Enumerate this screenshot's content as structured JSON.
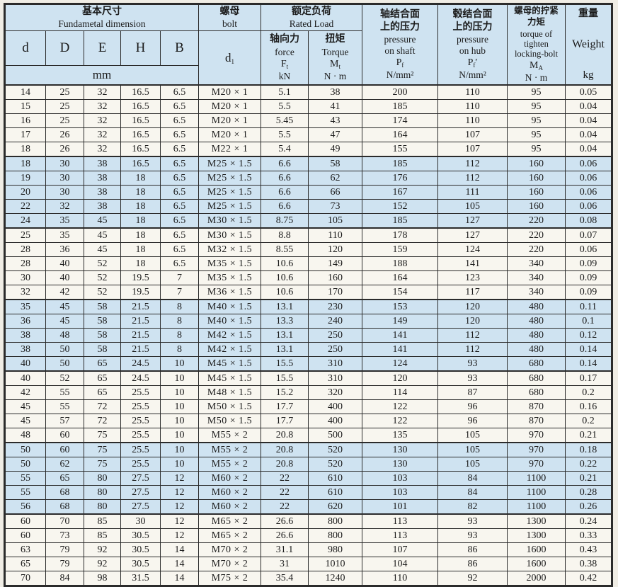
{
  "page": {
    "background": "#f0ede5",
    "shaded_row_color": "#cfe3f1",
    "plain_row_color": "#f8f6ef",
    "border_color": "#2b2b2b"
  },
  "header": {
    "basic": {
      "zh": "基本尺寸",
      "en": "Fundametal dimension",
      "cols": [
        "d",
        "D",
        "E",
        "H",
        "B"
      ],
      "unit": "mm"
    },
    "bolt": {
      "zh": "螺母",
      "en": "bolt",
      "sym": "d",
      "sub": "1"
    },
    "rated": {
      "zh": "额定负荷",
      "en": "Rated Load"
    },
    "force": {
      "zh": "轴向力",
      "en": "force",
      "sym": "F",
      "sub": "t",
      "unit": "kN"
    },
    "torque": {
      "zh": "扭矩",
      "en": "Torque",
      "sym": "M",
      "sub": "t",
      "unit": "N · m"
    },
    "pressure_shaft": {
      "zh": "轴结合面\n上的压力",
      "en": "pressure\non shaft",
      "sym": "P",
      "sub": "f",
      "unit": "N/mm²"
    },
    "pressure_hub": {
      "zh": "毂结合面\n上的压力",
      "en": "pressure\non hub",
      "sym": "P",
      "sub": "f",
      "prime": "′",
      "unit": "N/mm²"
    },
    "tighten": {
      "zh": "螺母的拧紧\n力矩",
      "en": "torque of\ntighten\nlocking-bolt",
      "sym": "M",
      "sub": "A",
      "unit": "N · m"
    },
    "weight": {
      "zh": "重量",
      "en": "Weight",
      "unit": "kg"
    }
  },
  "column_keys": [
    "d",
    "D",
    "E",
    "H",
    "B",
    "bolt",
    "force",
    "torque",
    "pressure-on-shaft",
    "pressure-on-hub",
    "tightening-torque",
    "weight"
  ],
  "groups": [
    {
      "shaded": false,
      "rows": [
        [
          "14",
          "25",
          "32",
          "16.5",
          "6.5",
          "M20 × 1",
          "5.1",
          "38",
          "200",
          "110",
          "95",
          "0.05"
        ],
        [
          "15",
          "25",
          "32",
          "16.5",
          "6.5",
          "M20 × 1",
          "5.5",
          "41",
          "185",
          "110",
          "95",
          "0.04"
        ],
        [
          "16",
          "25",
          "32",
          "16.5",
          "6.5",
          "M20 × 1",
          "5.45",
          "43",
          "174",
          "110",
          "95",
          "0.04"
        ],
        [
          "17",
          "26",
          "32",
          "16.5",
          "6.5",
          "M20 × 1",
          "5.5",
          "47",
          "164",
          "107",
          "95",
          "0.04"
        ],
        [
          "18",
          "26",
          "32",
          "16.5",
          "6.5",
          "M22 × 1",
          "5.4",
          "49",
          "155",
          "107",
          "95",
          "0.04"
        ]
      ]
    },
    {
      "shaded": true,
      "rows": [
        [
          "18",
          "30",
          "38",
          "16.5",
          "6.5",
          "M25 × 1.5",
          "6.6",
          "58",
          "185",
          "112",
          "160",
          "0.06"
        ],
        [
          "19",
          "30",
          "38",
          "18",
          "6.5",
          "M25 × 1.5",
          "6.6",
          "62",
          "176",
          "112",
          "160",
          "0.06"
        ],
        [
          "20",
          "30",
          "38",
          "18",
          "6.5",
          "M25 × 1.5",
          "6.6",
          "66",
          "167",
          "111",
          "160",
          "0.06"
        ],
        [
          "22",
          "32",
          "38",
          "18",
          "6.5",
          "M25 × 1.5",
          "6.6",
          "73",
          "152",
          "105",
          "160",
          "0.06"
        ],
        [
          "24",
          "35",
          "45",
          "18",
          "6.5",
          "M30 × 1.5",
          "8.75",
          "105",
          "185",
          "127",
          "220",
          "0.08"
        ]
      ]
    },
    {
      "shaded": false,
      "rows": [
        [
          "25",
          "35",
          "45",
          "18",
          "6.5",
          "M30 × 1.5",
          "8.8",
          "110",
          "178",
          "127",
          "220",
          "0.07"
        ],
        [
          "28",
          "36",
          "45",
          "18",
          "6.5",
          "M32 × 1.5",
          "8.55",
          "120",
          "159",
          "124",
          "220",
          "0.06"
        ],
        [
          "28",
          "40",
          "52",
          "18",
          "6.5",
          "M35 × 1.5",
          "10.6",
          "149",
          "188",
          "141",
          "340",
          "0.09"
        ],
        [
          "30",
          "40",
          "52",
          "19.5",
          "7",
          "M35 × 1.5",
          "10.6",
          "160",
          "164",
          "123",
          "340",
          "0.09"
        ],
        [
          "32",
          "42",
          "52",
          "19.5",
          "7",
          "M36 × 1.5",
          "10.6",
          "170",
          "154",
          "117",
          "340",
          "0.09"
        ]
      ]
    },
    {
      "shaded": true,
      "rows": [
        [
          "35",
          "45",
          "58",
          "21.5",
          "8",
          "M40 × 1.5",
          "13.1",
          "230",
          "153",
          "120",
          "480",
          "0.11"
        ],
        [
          "36",
          "45",
          "58",
          "21.5",
          "8",
          "M40 × 1.5",
          "13.3",
          "240",
          "149",
          "120",
          "480",
          "0.1"
        ],
        [
          "38",
          "48",
          "58",
          "21.5",
          "8",
          "M42 × 1.5",
          "13.1",
          "250",
          "141",
          "112",
          "480",
          "0.12"
        ],
        [
          "38",
          "50",
          "58",
          "21.5",
          "8",
          "M42 × 1.5",
          "13.1",
          "250",
          "141",
          "112",
          "480",
          "0.14"
        ],
        [
          "40",
          "50",
          "65",
          "24.5",
          "10",
          "M45 × 1.5",
          "15.5",
          "310",
          "124",
          "93",
          "680",
          "0.14"
        ]
      ]
    },
    {
      "shaded": false,
      "rows": [
        [
          "40",
          "52",
          "65",
          "24.5",
          "10",
          "M45 × 1.5",
          "15.5",
          "310",
          "120",
          "93",
          "680",
          "0.17"
        ],
        [
          "42",
          "55",
          "65",
          "25.5",
          "10",
          "M48 × 1.5",
          "15.2",
          "320",
          "114",
          "87",
          "680",
          "0.2"
        ],
        [
          "45",
          "55",
          "72",
          "25.5",
          "10",
          "M50 × 1.5",
          "17.7",
          "400",
          "122",
          "96",
          "870",
          "0.16"
        ],
        [
          "45",
          "57",
          "72",
          "25.5",
          "10",
          "M50 × 1.5",
          "17.7",
          "400",
          "122",
          "96",
          "870",
          "0.2"
        ],
        [
          "48",
          "60",
          "75",
          "25.5",
          "10",
          "M55 × 2",
          "20.8",
          "500",
          "135",
          "105",
          "970",
          "0.21"
        ]
      ]
    },
    {
      "shaded": true,
      "rows": [
        [
          "50",
          "60",
          "75",
          "25.5",
          "10",
          "M55 × 2",
          "20.8",
          "520",
          "130",
          "105",
          "970",
          "0.18"
        ],
        [
          "50",
          "62",
          "75",
          "25.5",
          "10",
          "M55 × 2",
          "20.8",
          "520",
          "130",
          "105",
          "970",
          "0.22"
        ],
        [
          "55",
          "65",
          "80",
          "27.5",
          "12",
          "M60 × 2",
          "22",
          "610",
          "103",
          "84",
          "1100",
          "0.21"
        ],
        [
          "55",
          "68",
          "80",
          "27.5",
          "12",
          "M60 × 2",
          "22",
          "610",
          "103",
          "84",
          "1100",
          "0.28"
        ],
        [
          "56",
          "68",
          "80",
          "27.5",
          "12",
          "M60 × 2",
          "22",
          "620",
          "101",
          "82",
          "1100",
          "0.26"
        ]
      ]
    },
    {
      "shaded": false,
      "rows": [
        [
          "60",
          "70",
          "85",
          "30",
          "12",
          "M65 × 2",
          "26.6",
          "800",
          "113",
          "93",
          "1300",
          "0.24"
        ],
        [
          "60",
          "73",
          "85",
          "30.5",
          "12",
          "M65 × 2",
          "26.6",
          "800",
          "113",
          "93",
          "1300",
          "0.33"
        ],
        [
          "63",
          "79",
          "92",
          "30.5",
          "14",
          "M70 × 2",
          "31.1",
          "980",
          "107",
          "86",
          "1600",
          "0.43"
        ],
        [
          "65",
          "79",
          "92",
          "30.5",
          "14",
          "M70 × 2",
          "31",
          "1010",
          "104",
          "86",
          "1600",
          "0.38"
        ],
        [
          "70",
          "84",
          "98",
          "31.5",
          "14",
          "M75 × 2",
          "35.4",
          "1240",
          "110",
          "92",
          "2000",
          "0.42"
        ]
      ]
    }
  ]
}
